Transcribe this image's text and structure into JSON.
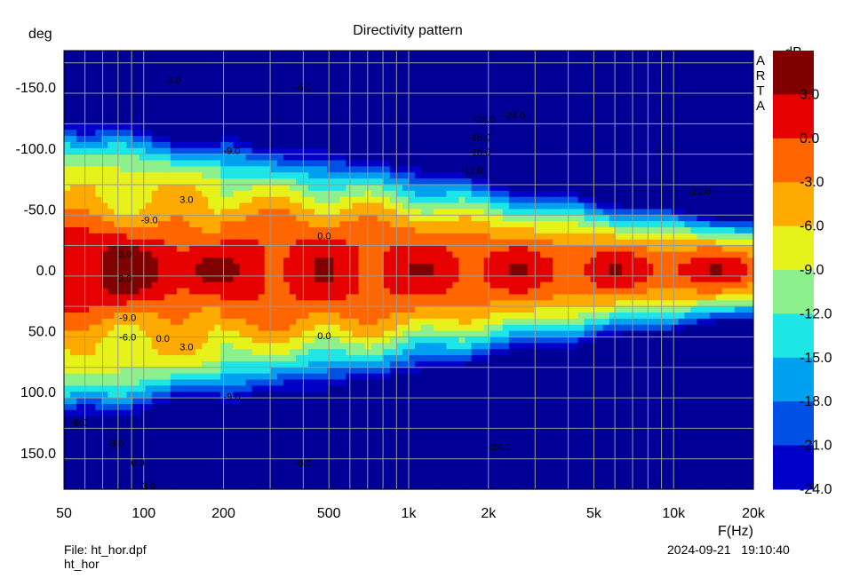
{
  "chart_data": {
    "type": "heatmap",
    "title": "Directivity pattern",
    "xlabel": "F(Hz)",
    "ylabel": "deg",
    "x_scale": "log",
    "xlim": [
      50,
      20000
    ],
    "ylim": [
      -180,
      180
    ],
    "y_inverted": true,
    "x_ticks": [
      50,
      100,
      200,
      500,
      1000,
      2000,
      5000,
      10000,
      20000
    ],
    "x_tick_labels": [
      "50",
      "100",
      "200",
      "500",
      "1k",
      "2k",
      "5k",
      "10k",
      "20k"
    ],
    "y_ticks": [
      -150,
      -100,
      -50,
      0,
      50,
      100,
      150
    ],
    "y_tick_labels": [
      "-150.0",
      "-100.0",
      "-50.0",
      "0.0",
      "50.0",
      "100.0",
      "150.0"
    ],
    "colorbar": {
      "unit": "dB",
      "ticks": [
        3,
        0,
        -3,
        -6,
        -9,
        -12,
        -15,
        -18,
        -21,
        -24
      ],
      "tick_labels": [
        "3.0",
        "0.0",
        "-3.0",
        "-6.0",
        "-9.0",
        "-12.0",
        "-15.0",
        "-18.0",
        "-21.0",
        "-24.0"
      ],
      "levels": [
        {
          "min": 3,
          "color": "#800000"
        },
        {
          "min": 0,
          "color": "#e60000"
        },
        {
          "min": -3,
          "color": "#ff6600"
        },
        {
          "min": -6,
          "color": "#ffaa00"
        },
        {
          "min": -9,
          "color": "#e6f21a"
        },
        {
          "min": -12,
          "color": "#8cf08c"
        },
        {
          "min": -15,
          "color": "#1ee6e6"
        },
        {
          "min": -18,
          "color": "#00a0f0"
        },
        {
          "min": -21,
          "color": "#0050e6"
        },
        {
          "min": -24,
          "color": "#0000c8"
        },
        {
          "min": -99,
          "color": "#000096"
        }
      ]
    },
    "contour_labels": [
      {
        "text": "0.0",
        "f": 130,
        "deg": -156
      },
      {
        "text": "-6.0",
        "f": 400,
        "deg": -150
      },
      {
        "text": "-9.0",
        "f": 215,
        "deg": -98
      },
      {
        "text": "3.0",
        "f": 145,
        "deg": -58
      },
      {
        "text": "-9.0",
        "f": 105,
        "deg": -41
      },
      {
        "text": "0.0",
        "f": 480,
        "deg": -28
      },
      {
        "text": "3.0",
        "f": 85,
        "deg": -13
      },
      {
        "text": "3.0",
        "f": 85,
        "deg": 7
      },
      {
        "text": "-9.0",
        "f": 87,
        "deg": 39
      },
      {
        "text": "-6.0",
        "f": 87,
        "deg": 55
      },
      {
        "text": "0.0",
        "f": 118,
        "deg": 56
      },
      {
        "text": "3.0",
        "f": 145,
        "deg": 63
      },
      {
        "text": "0.0",
        "f": 480,
        "deg": 54
      },
      {
        "text": "-9.0",
        "f": 215,
        "deg": 104
      },
      {
        "text": "-9.0",
        "f": 57,
        "deg": 125
      },
      {
        "text": "-3.0",
        "f": 78,
        "deg": 142
      },
      {
        "text": "0.0",
        "f": 95,
        "deg": 158
      },
      {
        "text": "-6.0",
        "f": 400,
        "deg": 158
      },
      {
        "text": "-3.0",
        "f": 103,
        "deg": 177
      },
      {
        "text": "-21.0",
        "f": 1920,
        "deg": -124
      },
      {
        "text": "-24.0",
        "f": 2500,
        "deg": -127
      },
      {
        "text": "-18.0",
        "f": 1850,
        "deg": -109
      },
      {
        "text": "-15.0",
        "f": 1850,
        "deg": -97
      },
      {
        "text": "-12.0",
        "f": 1730,
        "deg": -82
      },
      {
        "text": "-21.0",
        "f": 12500,
        "deg": -65
      },
      {
        "text": "-24.0",
        "f": 2200,
        "deg": 145
      }
    ]
  },
  "side_text": [
    "A",
    "R",
    "T",
    "A"
  ],
  "footer": {
    "file": "File: ht_hor.dpf",
    "name": "ht_hor",
    "timestamp": "2024-09-21   19:10:40"
  }
}
